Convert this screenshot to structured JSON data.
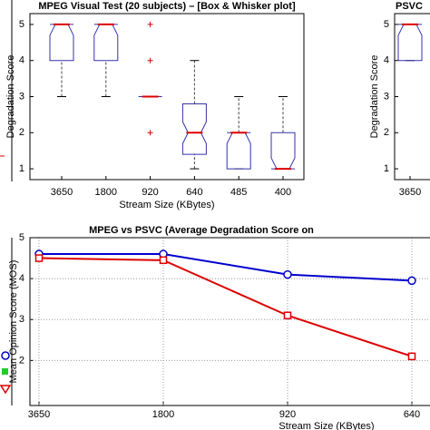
{
  "chart_data": [
    {
      "type": "box",
      "title": "MPEG Visual Test (20 subjects) – [Box & Whisker plot]",
      "x_label": "Stream Size (KBytes)",
      "y_label": "Degradation Score",
      "categories": [
        "3650",
        "1800",
        "920",
        "640",
        "485",
        "400"
      ],
      "boxes": [
        {
          "low": 3,
          "q1": 4,
          "median": 5,
          "q3": 5,
          "high": 5,
          "outliers": []
        },
        {
          "low": 3,
          "q1": 4,
          "median": 5,
          "q3": 5,
          "high": 5,
          "outliers": []
        },
        {
          "low": 3,
          "q1": 3,
          "median": 3,
          "q3": 3,
          "high": 3,
          "outliers": [
            5,
            4,
            2
          ]
        },
        {
          "low": 1,
          "q1": 1.4,
          "median": 2,
          "q3": 2.8,
          "high": 4,
          "outliers": []
        },
        {
          "low": 1,
          "q1": 1,
          "median": 2,
          "q3": 2,
          "high": 3,
          "outliers": []
        },
        {
          "low": 1,
          "q1": 1,
          "median": 1,
          "q3": 2,
          "high": 3,
          "outliers": []
        }
      ],
      "box_color": "#3333aa",
      "median_color": "#dd0000",
      "ylim": [
        0.7,
        5.3
      ],
      "yticks": [
        1,
        2,
        3,
        4,
        5
      ]
    },
    {
      "type": "box",
      "title": "PSVC",
      "y_label": "Degradation Score",
      "categories": [
        "3650"
      ],
      "boxes": [
        {
          "low": 4,
          "q1": 4,
          "median": 5,
          "q3": 5,
          "high": 5,
          "outliers": []
        }
      ],
      "box_color": "#3333aa",
      "median_color": "#dd0000",
      "ylim": [
        0.7,
        5.3
      ],
      "yticks": [
        1,
        2,
        3,
        4,
        5
      ]
    },
    {
      "type": "line",
      "title": "MPEG vs PSVC (Average Degradation Score on",
      "x_label": "Stream Size (KBytes)",
      "y_label": "Mean Opinion Score (MOS)",
      "categories": [
        "3650",
        "1800",
        "920",
        "640"
      ],
      "series": [
        {
          "color": "#0000cc",
          "marker": "circle",
          "values": [
            4.6,
            4.6,
            4.1,
            3.95
          ]
        },
        {
          "color": "#dd0000",
          "marker": "square",
          "values": [
            4.5,
            4.45,
            3.1,
            2.1
          ]
        }
      ],
      "ylim": [
        0.9,
        5
      ],
      "yticks": [
        2,
        3,
        4,
        5
      ],
      "grid": true
    }
  ]
}
